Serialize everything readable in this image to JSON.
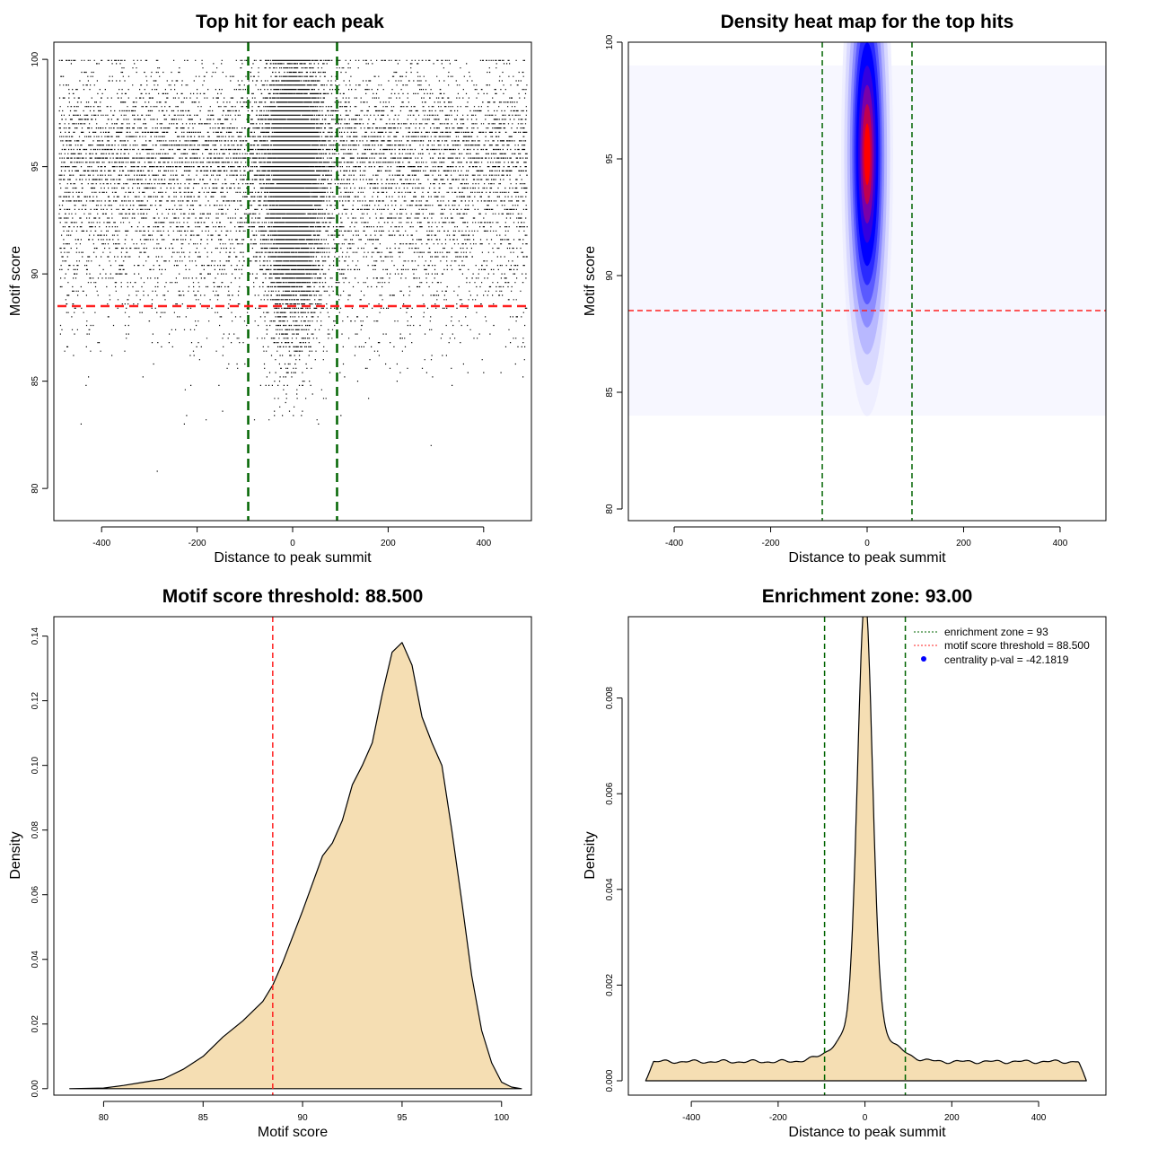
{
  "colors": {
    "points": "#000000",
    "enrichment_line": "#006400",
    "threshold_line": "#ff2020",
    "density_fill": "#f5deb3",
    "heat_low": "#f4f4ff",
    "heat_mid": "#0000ff",
    "heat_high": "#ff0000",
    "legend_dot": "#0000ff"
  },
  "chart_data": [
    {
      "id": "scatter",
      "type": "scatter",
      "title": "Top hit for each peak",
      "xlabel": "Distance to peak summit",
      "ylabel": "Motif score",
      "xlim": [
        -500,
        500
      ],
      "ylim": [
        78.5,
        100.8
      ],
      "xticks": [
        -400,
        -200,
        0,
        200,
        400
      ],
      "yticks": [
        80,
        85,
        90,
        95,
        100
      ],
      "vlines": [
        -93,
        93
      ],
      "hline": 88.5,
      "background_range": [
        -490,
        490
      ],
      "central_sd": 28,
      "score_mode": 94.8,
      "score_sd_low": 3.6,
      "score_sd_high": 2.4,
      "background_points": 9000,
      "central_points": 9000
    },
    {
      "id": "heatmap",
      "type": "heatmap",
      "title": "Density heat map for the top hits",
      "xlabel": "Distance to peak summit",
      "ylabel": "Motif score",
      "xlim": [
        -495,
        495
      ],
      "ylim": [
        79.5,
        100
      ],
      "xticks": [
        -400,
        -200,
        0,
        200,
        400
      ],
      "yticks": [
        80,
        85,
        90,
        95,
        100
      ],
      "vlines": [
        -93,
        93
      ],
      "hline": 88.5,
      "hotspot_center": [
        0,
        95.2
      ],
      "hotspot_spread": [
        22,
        3.3
      ]
    },
    {
      "id": "score-density",
      "type": "area",
      "title": "Motif score threshold: 88.500",
      "xlabel": "Motif score",
      "ylabel": "Density",
      "xlim": [
        77.5,
        101.5
      ],
      "ylim": [
        -0.002,
        0.146
      ],
      "xticks": [
        80,
        85,
        90,
        95,
        100
      ],
      "yticks": [
        0.0,
        0.02,
        0.04,
        0.06,
        0.08,
        0.1,
        0.12,
        0.14
      ],
      "ytick_labels": [
        "0.00",
        "0.02",
        "0.04",
        "0.06",
        "0.08",
        "0.10",
        "0.12",
        "0.14"
      ],
      "vline": 88.5,
      "x": [
        78.3,
        80,
        81,
        82,
        83,
        84,
        85,
        86,
        87,
        88,
        88.5,
        89,
        90,
        91,
        91.5,
        92,
        92.5,
        93,
        93.5,
        94,
        94.5,
        95,
        95.5,
        96,
        96.5,
        97,
        97.5,
        98,
        98.5,
        99,
        99.5,
        100,
        100.5,
        101
      ],
      "y": [
        0.0,
        0.0002,
        0.001,
        0.002,
        0.003,
        0.006,
        0.01,
        0.016,
        0.021,
        0.027,
        0.032,
        0.039,
        0.055,
        0.072,
        0.076,
        0.083,
        0.094,
        0.1,
        0.107,
        0.122,
        0.135,
        0.138,
        0.131,
        0.115,
        0.107,
        0.1,
        0.08,
        0.058,
        0.035,
        0.018,
        0.008,
        0.002,
        0.0005,
        0.0
      ]
    },
    {
      "id": "distance-density",
      "type": "area",
      "title": "Enrichment zone: 93.00",
      "xlabel": "Distance to peak summit",
      "ylabel": "Density",
      "xlim": [
        -545,
        555
      ],
      "ylim": [
        -0.0003,
        0.0097
      ],
      "xticks": [
        -400,
        -200,
        0,
        200,
        400
      ],
      "yticks": [
        0.0,
        0.002,
        0.004,
        0.006,
        0.008
      ],
      "ytick_labels": [
        "0.000",
        "0.002",
        "0.004",
        "0.006",
        "0.008"
      ],
      "vlines": [
        -93,
        93
      ],
      "baseline": 0.0004,
      "peak_height": 0.0089,
      "peak_sd": 17,
      "shoulder_height": 0.0008,
      "shoulder_sd": 55,
      "range": [
        -505,
        510
      ],
      "legend": [
        {
          "key": "line",
          "color": "#006400",
          "label": "enrichment zone = 93"
        },
        {
          "key": "line",
          "color": "#ff2020",
          "label": "motif score threshold = 88.500"
        },
        {
          "key": "dot",
          "color": "#0000ff",
          "label": "centrality p-val = -42.1819"
        }
      ]
    }
  ]
}
